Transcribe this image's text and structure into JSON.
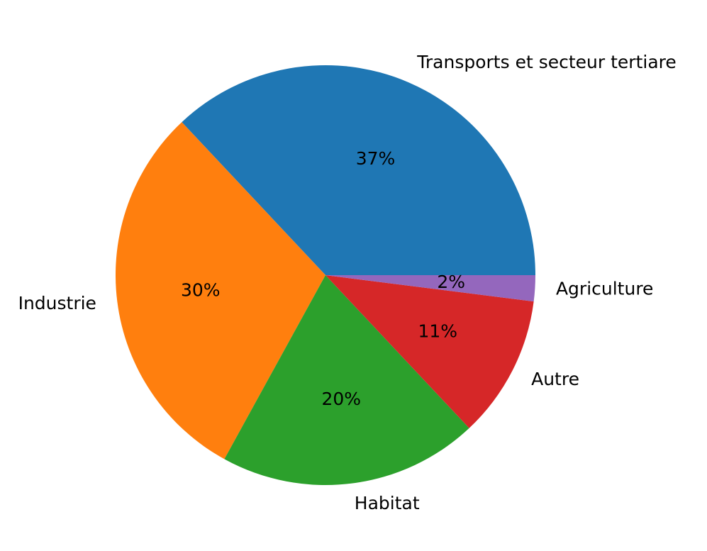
{
  "chart_data": {
    "type": "pie",
    "title": "",
    "slices": [
      {
        "label": "Transports et secteur tertiare",
        "value": 37,
        "pct_label": "37%",
        "color": "#1f77b4"
      },
      {
        "label": "Industrie",
        "value": 30,
        "pct_label": "30%",
        "color": "#ff7f0e"
      },
      {
        "label": "Habitat",
        "value": 20,
        "pct_label": "20%",
        "color": "#2ca02c"
      },
      {
        "label": "Autre",
        "value": 11,
        "pct_label": "11%",
        "color": "#d62728"
      },
      {
        "label": "Agriculture",
        "value": 2,
        "pct_label": "2%",
        "color": "#9467bd"
      }
    ],
    "start_angle_deg": 0,
    "direction": "counterclockwise",
    "legend": "none"
  }
}
